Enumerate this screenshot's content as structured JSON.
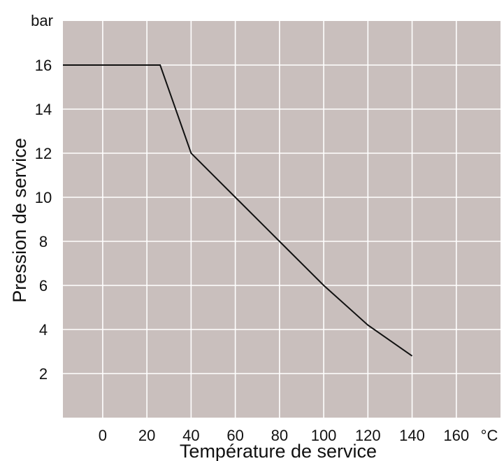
{
  "chart_data": {
    "type": "line",
    "xlabel": "Température de service",
    "ylabel": "Pression de service",
    "x_unit": "°C",
    "y_unit": "bar",
    "xlim": [
      -18,
      180
    ],
    "ylim": [
      0,
      18
    ],
    "x_ticks": [
      0,
      20,
      40,
      60,
      80,
      100,
      120,
      140,
      160
    ],
    "y_ticks": [
      2,
      4,
      6,
      8,
      10,
      12,
      14,
      16
    ],
    "x_grid": [
      0,
      20,
      40,
      60,
      80,
      100,
      120,
      140,
      160
    ],
    "y_grid": [
      2,
      4,
      6,
      8,
      10,
      12,
      14,
      16
    ],
    "grid": true,
    "background_color": "#c9bfbd",
    "grid_color": "#ffffff",
    "line_color": "#111111",
    "series": [
      {
        "x": [
          -18,
          26,
          40,
          60,
          80,
          100,
          120,
          140
        ],
        "y": [
          16,
          16,
          12,
          10,
          8,
          6,
          4.2,
          2.8
        ]
      }
    ]
  }
}
